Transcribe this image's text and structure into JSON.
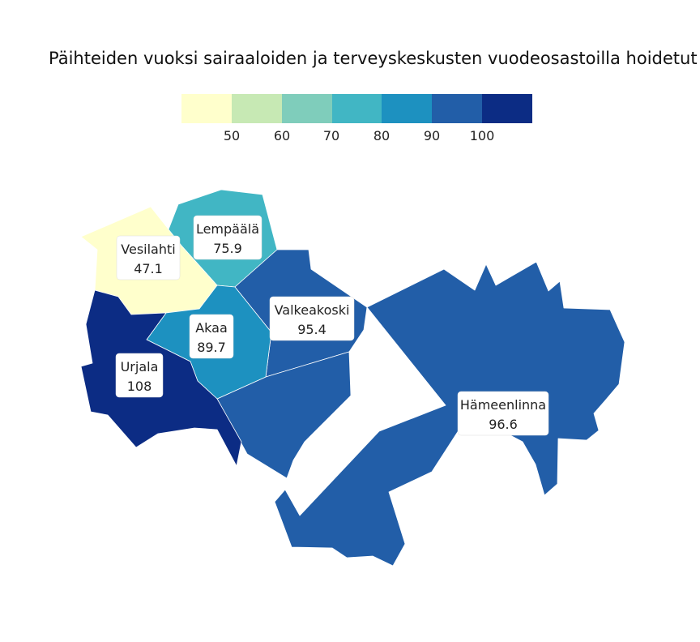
{
  "title": "Päihteiden vuoksi sairaaloiden ja terveyskeskusten vuodeosastoilla hoidetut p",
  "legend": {
    "colors": [
      "#ffffcc",
      "#c7e9b4",
      "#7fcdbb",
      "#41b6c4",
      "#1d91c0",
      "#225ea8",
      "#0c2c84"
    ],
    "ticks": [
      "50",
      "60",
      "70",
      "80",
      "90",
      "100"
    ]
  },
  "regions": [
    {
      "name": "Vesilahti",
      "value": "47.1",
      "color": "#ffffcc"
    },
    {
      "name": "Lempäälä",
      "value": "75.9",
      "color": "#41b6c4"
    },
    {
      "name": "Valkeakoski",
      "value": "95.4",
      "color": "#225ea8"
    },
    {
      "name": "Akaa",
      "value": "89.7",
      "color": "#1d91c0"
    },
    {
      "name": "Urjala",
      "value": "108",
      "color": "#0c2c84"
    },
    {
      "name": "Hämeenlinna",
      "value": "96.6",
      "color": "#225ea8"
    }
  ]
}
